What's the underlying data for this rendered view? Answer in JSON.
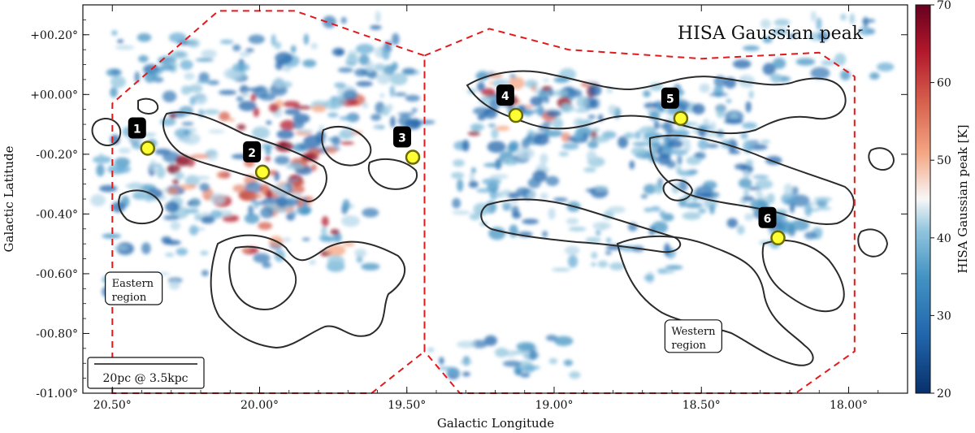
{
  "chart_data": {
    "type": "heatmap",
    "title": "HISA Gaussian peak",
    "xlabel": "Galactic Longitude",
    "ylabel": "Galactic Latitude",
    "xlim": [
      20.6,
      17.8
    ],
    "ylim": [
      -1.0,
      0.3
    ],
    "x_ticks": [
      20.5,
      20.0,
      19.5,
      19.0,
      18.5,
      18.0
    ],
    "x_tick_labels": [
      "20.50°",
      "20.00°",
      "19.50°",
      "19.00°",
      "18.50°",
      "18.00°"
    ],
    "y_ticks": [
      -1.0,
      -0.8,
      -0.6,
      -0.4,
      -0.2,
      0.0,
      0.2
    ],
    "y_tick_labels": [
      "-01.00°",
      "-00.80°",
      "-00.60°",
      "-00.40°",
      "-00.20°",
      "+00.00°",
      "+00.20°"
    ],
    "colorbar": {
      "label": "HISA Gaussian peak [K]",
      "range": [
        20,
        70
      ],
      "ticks": [
        20,
        30,
        40,
        50,
        60,
        70
      ],
      "tick_labels": [
        "20",
        "30",
        "40",
        "50",
        "60",
        "70"
      ],
      "colormap": [
        "#08306b",
        "#2166ac",
        "#4393c3",
        "#92c5de",
        "#f7f7f7",
        "#f4a582",
        "#d6604d",
        "#b2182b",
        "#67001f"
      ]
    },
    "markers": [
      {
        "label": "1",
        "l": 20.38,
        "b": -0.18
      },
      {
        "label": "2",
        "l": 19.99,
        "b": -0.26
      },
      {
        "label": "3",
        "l": 19.48,
        "b": -0.21
      },
      {
        "label": "4",
        "l": 19.13,
        "b": -0.07
      },
      {
        "label": "5",
        "l": 18.57,
        "b": -0.08
      },
      {
        "label": "6",
        "l": 18.24,
        "b": -0.48
      }
    ],
    "regions": [
      {
        "label": "Eastern\nregion",
        "polygon": [
          [
            20.5,
            -1.0
          ],
          [
            20.5,
            -0.03
          ],
          [
            20.14,
            0.28
          ],
          [
            19.88,
            0.28
          ],
          [
            19.62,
            0.19
          ],
          [
            19.44,
            0.13
          ],
          [
            19.44,
            -0.86
          ],
          [
            19.62,
            -1.0
          ]
        ]
      },
      {
        "label": "Western\nregion",
        "polygon": [
          [
            19.44,
            -0.86
          ],
          [
            19.44,
            0.13
          ],
          [
            19.22,
            0.22
          ],
          [
            18.95,
            0.15
          ],
          [
            18.5,
            0.12
          ],
          [
            18.1,
            0.14
          ],
          [
            17.98,
            0.06
          ],
          [
            17.98,
            -0.86
          ],
          [
            18.18,
            -1.0
          ],
          [
            19.32,
            -1.0
          ]
        ]
      }
    ],
    "region_labels": [
      {
        "text": [
          "Eastern",
          "region"
        ],
        "l": 20.43,
        "b": -0.66
      },
      {
        "text": [
          "Western",
          "region"
        ],
        "l": 18.53,
        "b": -0.82
      }
    ],
    "scalebar": {
      "text": "20pc @ 3.5kpc"
    },
    "colors": {
      "region_border": "#e31a1c",
      "contour": "#2b2b2b",
      "marker_fill": "#ffff33",
      "marker_edge": "#6b6b00"
    }
  }
}
